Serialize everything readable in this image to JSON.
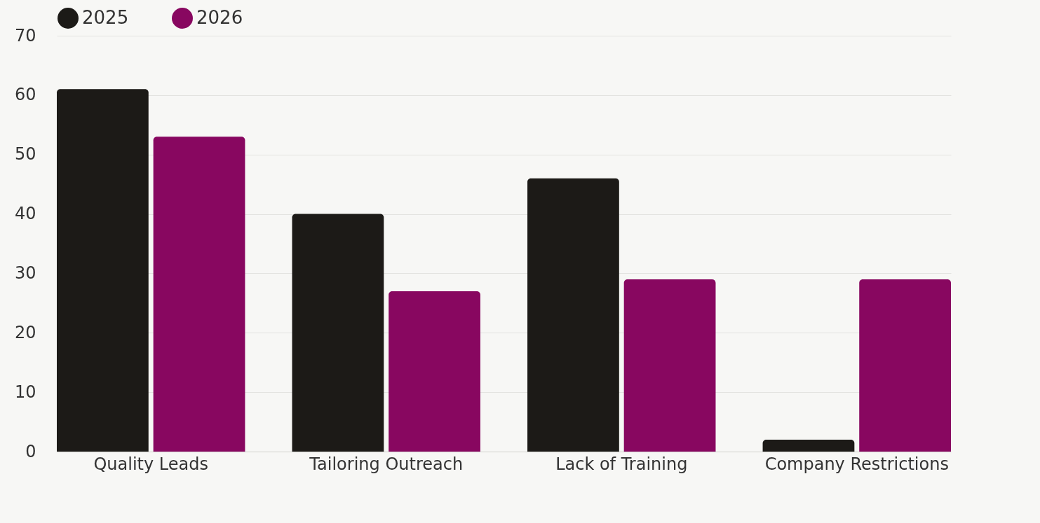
{
  "chart_data": {
    "type": "bar",
    "categories": [
      "Quality Leads",
      "Tailoring Outreach",
      "Lack of Training",
      "Company Restrictions"
    ],
    "series": [
      {
        "name": "2025",
        "color": "#1c1a17",
        "values": [
          61,
          40,
          46,
          2
        ]
      },
      {
        "name": "2026",
        "color": "#880760",
        "values": [
          53,
          27,
          29,
          29
        ]
      }
    ],
    "ylim": [
      0,
      70
    ],
    "yticks": [
      0,
      10,
      20,
      30,
      40,
      50,
      60,
      70
    ],
    "grid": "y",
    "legend": "top"
  }
}
